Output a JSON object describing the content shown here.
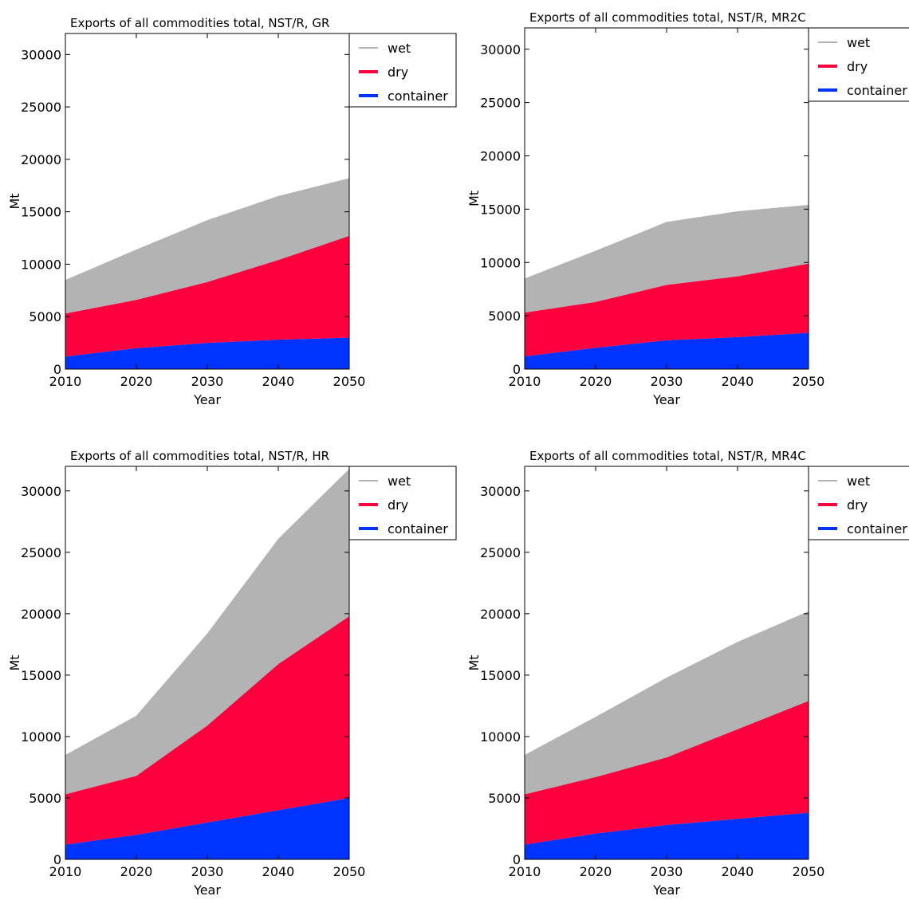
{
  "colors": {
    "wet": "#b3b3b3",
    "dry": "#ff003f",
    "container": "#0033ff"
  },
  "chart_data": [
    {
      "type": "area",
      "title": "Exports of all commodities total, NST/R, GR",
      "xlabel": "Year",
      "ylabel": "Mt",
      "x": [
        2010,
        2020,
        2030,
        2040,
        2050
      ],
      "xlim": [
        2010,
        2050
      ],
      "ylim": [
        0,
        32000
      ],
      "yticks": [
        0,
        5000,
        10000,
        15000,
        20000,
        25000,
        30000
      ],
      "xticks": [
        2010,
        2020,
        2030,
        2040,
        2050
      ],
      "grid": false,
      "legend_position": "top-right",
      "stacked": true,
      "series": [
        {
          "name": "container",
          "values": [
            1200,
            2000,
            2500,
            2800,
            3000
          ]
        },
        {
          "name": "dry",
          "values": [
            4100,
            4600,
            5800,
            7600,
            9700
          ]
        },
        {
          "name": "wet",
          "values": [
            3200,
            4800,
            5900,
            6100,
            5500
          ]
        }
      ]
    },
    {
      "type": "area",
      "title": "Exports of all commodities total, NST/R, MR2C",
      "xlabel": "Year",
      "ylabel": "Mt",
      "x": [
        2010,
        2020,
        2030,
        2040,
        2050
      ],
      "xlim": [
        2010,
        2050
      ],
      "ylim": [
        0,
        32000
      ],
      "yticks": [
        0,
        5000,
        10000,
        15000,
        20000,
        25000,
        30000
      ],
      "xticks": [
        2010,
        2020,
        2030,
        2040,
        2050
      ],
      "grid": false,
      "legend_position": "top-right",
      "stacked": true,
      "series": [
        {
          "name": "container",
          "values": [
            1200,
            2000,
            2700,
            3000,
            3400
          ]
        },
        {
          "name": "dry",
          "values": [
            4100,
            4300,
            5200,
            5700,
            6500
          ]
        },
        {
          "name": "wet",
          "values": [
            3200,
            4800,
            5900,
            6100,
            5500
          ]
        }
      ]
    },
    {
      "type": "area",
      "title": "Exports of all commodities total, NST/R, HR",
      "xlabel": "Year",
      "ylabel": "Mt",
      "x": [
        2010,
        2020,
        2030,
        2040,
        2050
      ],
      "xlim": [
        2010,
        2050
      ],
      "ylim": [
        0,
        32000
      ],
      "yticks": [
        0,
        5000,
        10000,
        15000,
        20000,
        25000,
        30000
      ],
      "xticks": [
        2010,
        2020,
        2030,
        2040,
        2050
      ],
      "grid": false,
      "legend_position": "top-right",
      "stacked": true,
      "series": [
        {
          "name": "container",
          "values": [
            1200,
            2000,
            3000,
            4000,
            5000
          ]
        },
        {
          "name": "dry",
          "values": [
            4100,
            4800,
            7900,
            11900,
            14800
          ]
        },
        {
          "name": "wet",
          "values": [
            3200,
            4900,
            7500,
            10200,
            12000
          ]
        }
      ]
    },
    {
      "type": "area",
      "title": "Exports of all commodities total, NST/R, MR4C",
      "xlabel": "Year",
      "ylabel": "Mt",
      "x": [
        2010,
        2020,
        2030,
        2040,
        2050
      ],
      "xlim": [
        2010,
        2050
      ],
      "ylim": [
        0,
        32000
      ],
      "yticks": [
        0,
        5000,
        10000,
        15000,
        20000,
        25000,
        30000
      ],
      "xticks": [
        2010,
        2020,
        2030,
        2040,
        2050
      ],
      "grid": false,
      "legend_position": "top-right",
      "stacked": true,
      "series": [
        {
          "name": "container",
          "values": [
            1200,
            2100,
            2800,
            3300,
            3800
          ]
        },
        {
          "name": "dry",
          "values": [
            4100,
            4600,
            5500,
            7300,
            9100
          ]
        },
        {
          "name": "wet",
          "values": [
            3200,
            4900,
            6500,
            7100,
            7300
          ]
        }
      ]
    }
  ]
}
